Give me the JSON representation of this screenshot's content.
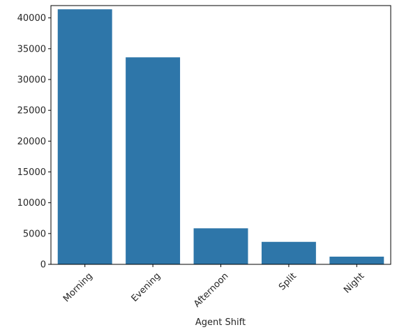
{
  "chart_data": {
    "type": "bar",
    "title": "",
    "xlabel": "Agent Shift",
    "ylabel": "",
    "categories": [
      "Morning",
      "Evening",
      "Afternoon",
      "Split",
      "Night"
    ],
    "values": [
      41400,
      33600,
      5850,
      3650,
      1250
    ],
    "ylim": [
      0,
      42000
    ],
    "yticks": [
      0,
      5000,
      10000,
      15000,
      20000,
      25000,
      30000,
      35000,
      40000
    ],
    "bar_color": "#2e76a9",
    "grid": false,
    "legend": "none",
    "x_tick_rotation": "45"
  }
}
